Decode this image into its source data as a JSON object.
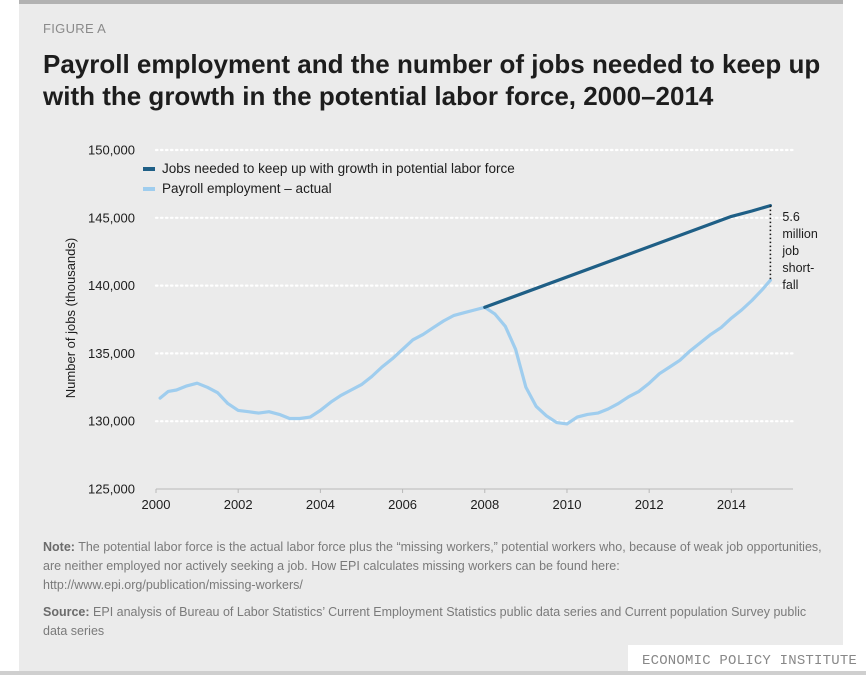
{
  "figure_label": "FIGURE A",
  "title": "Payroll employment and the number of jobs needed to keep up with the growth in the potential labor force, 2000–2014",
  "note_label": "Note:",
  "note_text": "The potential labor force is the actual labor force plus the “missing workers,” potential workers who, because of weak job opportunities, are neither employed nor actively seeking a job.  How EPI calculates missing workers can be found here: http://www.epi.org/publication/missing-workers/",
  "source_label": "Source:",
  "source_text": "EPI analysis of Bureau of Labor Statistics’ Current Employment Statistics public data series and Current population Survey public data series",
  "organization": "ECONOMIC POLICY INSTITUTE",
  "colors": {
    "panel_bg": "#ebebeb",
    "needed_line": "#1f5f86",
    "actual_line": "#9fcdee",
    "grid": "#ffffff",
    "text": "#1d1d1d"
  },
  "chart_data": {
    "type": "line",
    "ylabel": "Number of jobs (thousands)",
    "xlabel": "",
    "xlim": [
      2000,
      2015.5
    ],
    "ylim": [
      125000,
      150000
    ],
    "x_ticks": [
      2000,
      2002,
      2004,
      2006,
      2008,
      2010,
      2012,
      2014
    ],
    "x_tick_labels": [
      "2000",
      "2002",
      "2004",
      "2006",
      "2008",
      "2010",
      "2012",
      "2014"
    ],
    "y_ticks": [
      125000,
      130000,
      135000,
      140000,
      145000,
      150000
    ],
    "y_tick_labels": [
      "125,000",
      "130,000",
      "135,000",
      "140,000",
      "145,000",
      "150,000"
    ],
    "grid": true,
    "legend_position": "top-left",
    "series": [
      {
        "name": "Jobs needed to keep up with growth in potential labor force",
        "color": "#1f5f86",
        "x": [
          2008.0,
          2014.0,
          2014.5,
          2014.95
        ],
        "y": [
          138400,
          145100,
          145500,
          145900
        ]
      },
      {
        "name": "Payroll employment – actual",
        "color": "#9fcdee",
        "x": [
          2000.1,
          2000.3,
          2000.5,
          2000.75,
          2001.0,
          2001.25,
          2001.5,
          2001.75,
          2002.0,
          2002.25,
          2002.5,
          2002.75,
          2003.0,
          2003.25,
          2003.5,
          2003.75,
          2004.0,
          2004.25,
          2004.5,
          2004.75,
          2005.0,
          2005.25,
          2005.5,
          2005.75,
          2006.0,
          2006.25,
          2006.5,
          2006.75,
          2007.0,
          2007.25,
          2007.5,
          2007.75,
          2008.0,
          2008.25,
          2008.5,
          2008.75,
          2009.0,
          2009.25,
          2009.5,
          2009.75,
          2010.0,
          2010.25,
          2010.5,
          2010.75,
          2011.0,
          2011.25,
          2011.5,
          2011.75,
          2012.0,
          2012.25,
          2012.5,
          2012.75,
          2013.0,
          2013.25,
          2013.5,
          2013.75,
          2014.0,
          2014.25,
          2014.5,
          2014.75,
          2014.95
        ],
        "y": [
          131700,
          132200,
          132300,
          132600,
          132800,
          132500,
          132100,
          131300,
          130800,
          130700,
          130600,
          130700,
          130500,
          130200,
          130200,
          130300,
          130800,
          131400,
          131900,
          132300,
          132700,
          133300,
          134000,
          134600,
          135300,
          136000,
          136400,
          136900,
          137400,
          137800,
          138000,
          138200,
          138400,
          137900,
          137000,
          135300,
          132500,
          131100,
          130400,
          129900,
          129800,
          130300,
          130500,
          130600,
          130900,
          131300,
          131800,
          132200,
          132800,
          133500,
          134000,
          134500,
          135200,
          135800,
          136400,
          136900,
          137600,
          138200,
          138900,
          139700,
          140400
        ]
      }
    ],
    "annotation": {
      "lines": [
        "5.6",
        "million",
        "job",
        "short-",
        "fall"
      ],
      "x": 2014.95,
      "y_top": 145900,
      "y_bottom": 140400
    }
  }
}
